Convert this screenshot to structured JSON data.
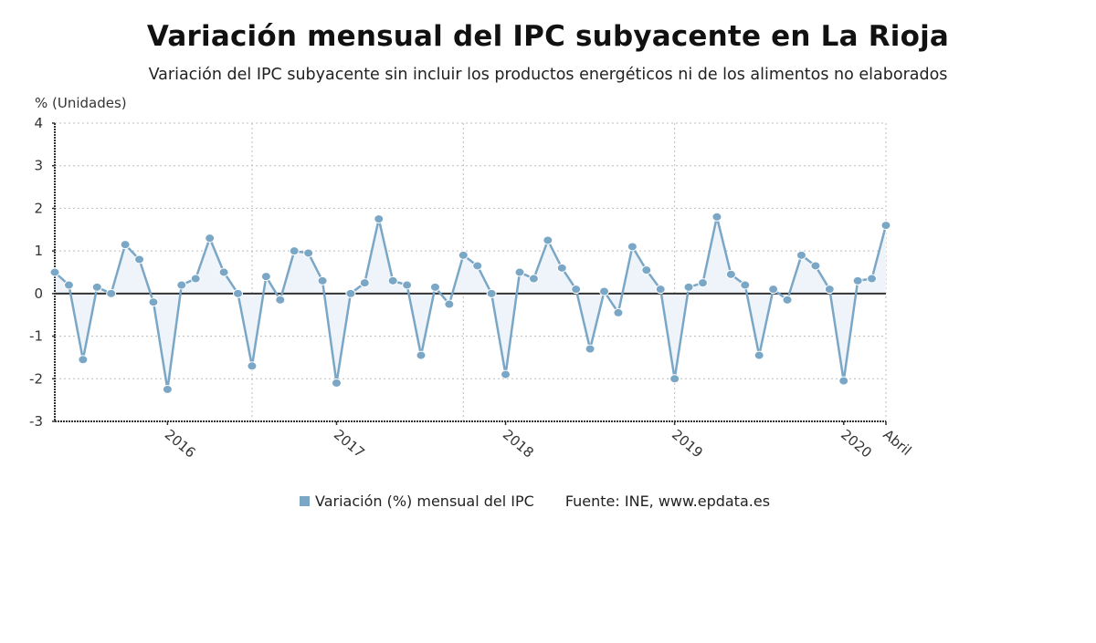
{
  "colors": {
    "series": "#7ba7c7",
    "fill": "#eef4fa",
    "zero_line": "#333333",
    "grid": "#bdbdbd",
    "axis": "#333333"
  },
  "legend": {
    "series_label": "Variación (%) mensual del IPC",
    "source": "Fuente: INE, www.epdata.es"
  },
  "chart_data": {
    "type": "area",
    "title": "Variación mensual del IPC subyacente en La Rioja",
    "subtitle": "Variación del IPC subyacente sin incluir los productos energéticos ni de los alimentos no elaborados",
    "ylabel": "% (Unidades)",
    "xlabel": "",
    "ylim": [
      -3,
      4
    ],
    "yticks": [
      4,
      3,
      2,
      1,
      0,
      -1,
      -2,
      -3
    ],
    "grid": true,
    "legend_position": "bottom",
    "x_tick_labels": [
      {
        "label": "2016",
        "index": 8
      },
      {
        "label": "2017",
        "index": 20
      },
      {
        "label": "2018",
        "index": 32
      },
      {
        "label": "2019",
        "index": 44
      },
      {
        "label": "2020",
        "index": 56
      },
      {
        "label": "Abril",
        "index": 59
      }
    ],
    "x": [
      "2015-05",
      "2015-06",
      "2015-07",
      "2015-08",
      "2015-09",
      "2015-10",
      "2015-11",
      "2015-12",
      "2016-01",
      "2016-02",
      "2016-03",
      "2016-04",
      "2016-05",
      "2016-06",
      "2016-07",
      "2016-08",
      "2016-09",
      "2016-10",
      "2016-11",
      "2016-12",
      "2017-01",
      "2017-02",
      "2017-03",
      "2017-04",
      "2017-05",
      "2017-06",
      "2017-07",
      "2017-08",
      "2017-09",
      "2017-10",
      "2017-11",
      "2017-12",
      "2018-01",
      "2018-02",
      "2018-03",
      "2018-04",
      "2018-05",
      "2018-06",
      "2018-07",
      "2018-08",
      "2018-09",
      "2018-10",
      "2018-11",
      "2018-12",
      "2019-01",
      "2019-02",
      "2019-03",
      "2019-04",
      "2019-05",
      "2019-06",
      "2019-07",
      "2019-08",
      "2019-09",
      "2019-10",
      "2019-11",
      "2019-12",
      "2020-01",
      "2020-02",
      "2020-03",
      "2020-04"
    ],
    "series": [
      {
        "name": "Variación (%) mensual del IPC",
        "values": [
          0.5,
          0.2,
          -1.55,
          0.15,
          0.0,
          1.15,
          0.8,
          -0.2,
          -2.25,
          0.2,
          0.35,
          1.3,
          0.5,
          0.0,
          -1.7,
          0.4,
          -0.15,
          1.0,
          0.95,
          0.3,
          -2.1,
          0.0,
          0.25,
          1.75,
          0.3,
          0.2,
          -1.45,
          0.15,
          -0.25,
          0.9,
          0.65,
          0.0,
          -1.9,
          0.5,
          0.35,
          1.25,
          0.6,
          0.1,
          -1.3,
          0.05,
          -0.45,
          1.1,
          0.55,
          0.1,
          -2.0,
          0.15,
          0.25,
          1.8,
          0.45,
          0.2,
          -1.45,
          0.1,
          -0.15,
          0.9,
          0.65,
          0.1,
          -2.05,
          0.3,
          0.35,
          1.6
        ]
      }
    ]
  }
}
